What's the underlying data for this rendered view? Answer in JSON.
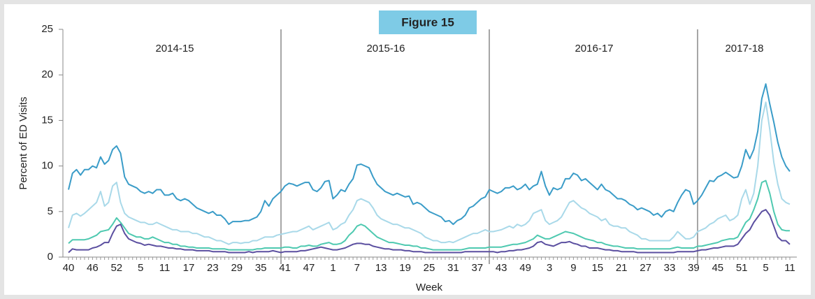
{
  "chart_data": {
    "type": "line",
    "badge": "Figure 15",
    "y_label": "Percent of ED Visits",
    "x_label": "Week",
    "seasons": [
      "2014-15",
      "2015-16",
      "2016-17",
      "2017-18"
    ],
    "ylim": [
      0,
      25
    ],
    "yticks": [
      0,
      5,
      10,
      15,
      20,
      25
    ],
    "categories": [
      "40",
      null,
      null,
      null,
      null,
      null,
      "46",
      null,
      null,
      null,
      null,
      null,
      "52",
      null,
      null,
      null,
      null,
      null,
      "5",
      null,
      null,
      null,
      null,
      null,
      "11",
      null,
      null,
      null,
      null,
      null,
      "17",
      null,
      null,
      null,
      null,
      null,
      "23",
      null,
      null,
      null,
      null,
      null,
      "29",
      null,
      null,
      null,
      null,
      null,
      "35",
      null,
      null,
      null,
      null,
      null,
      "41",
      null,
      null,
      null,
      null,
      null,
      "47",
      null,
      null,
      null,
      null,
      null,
      "1",
      null,
      null,
      null,
      null,
      null,
      "7",
      null,
      null,
      null,
      null,
      null,
      "13",
      null,
      null,
      null,
      null,
      null,
      "19",
      null,
      null,
      null,
      null,
      null,
      "25",
      null,
      null,
      null,
      null,
      null,
      "31",
      null,
      null,
      null,
      null,
      null,
      "37",
      null,
      null,
      null,
      null,
      null,
      "43",
      null,
      null,
      null,
      null,
      null,
      "49",
      null,
      null,
      null,
      null,
      null,
      "3",
      null,
      null,
      null,
      null,
      null,
      "9",
      null,
      null,
      null,
      null,
      null,
      "15",
      null,
      null,
      null,
      null,
      null,
      "21",
      null,
      null,
      null,
      null,
      null,
      "27",
      null,
      null,
      null,
      null,
      null,
      "33",
      null,
      null,
      null,
      null,
      null,
      "39",
      null,
      null,
      null,
      null,
      null,
      "45",
      null,
      null,
      null,
      null,
      null,
      "51",
      null,
      null,
      null,
      null,
      null,
      "5",
      null,
      null,
      null,
      null,
      null,
      "11"
    ],
    "series": [
      {
        "color": "#3a9cc8",
        "values": [
          7.4,
          9.2,
          9.6,
          9.0,
          9.6,
          9.6,
          10.0,
          9.8,
          11.0,
          10.2,
          10.6,
          11.8,
          12.2,
          11.4,
          8.8,
          8.0,
          7.8,
          7.6,
          7.2,
          7.0,
          7.2,
          7.0,
          7.4,
          7.4,
          6.8,
          6.8,
          7.0,
          6.4,
          6.2,
          6.4,
          6.2,
          5.8,
          5.4,
          5.2,
          5.0,
          4.8,
          5.0,
          4.6,
          4.6,
          4.2,
          3.6,
          3.9,
          3.9,
          3.9,
          4.0,
          4.0,
          4.2,
          4.4,
          5.0,
          6.2,
          5.6,
          6.4,
          6.8,
          7.2,
          7.8,
          8.1,
          8.0,
          7.8,
          8.0,
          8.2,
          8.2,
          7.4,
          7.2,
          7.6,
          8.3,
          8.4,
          6.4,
          6.8,
          7.4,
          7.2,
          8.0,
          8.6,
          10.1,
          10.2,
          10.0,
          9.8,
          8.8,
          8.0,
          7.6,
          7.2,
          7.0,
          6.8,
          7.0,
          6.8,
          6.6,
          6.7,
          5.8,
          6.0,
          5.8,
          5.4,
          5.0,
          4.8,
          4.6,
          4.4,
          3.9,
          4.0,
          3.6,
          4.0,
          4.2,
          4.6,
          5.4,
          5.6,
          6.0,
          6.4,
          6.6,
          7.4,
          7.2,
          7.0,
          7.2,
          7.6,
          7.6,
          7.8,
          7.4,
          7.6,
          8.0,
          7.4,
          7.8,
          8.0,
          9.4,
          7.8,
          6.8,
          7.6,
          7.4,
          7.6,
          8.6,
          8.6,
          9.2,
          9.0,
          8.4,
          8.6,
          8.2,
          7.8,
          7.4,
          8.0,
          7.4,
          7.2,
          6.8,
          6.4,
          6.4,
          6.2,
          5.8,
          5.6,
          5.2,
          5.4,
          5.2,
          5.0,
          4.6,
          4.8,
          4.4,
          5.0,
          5.2,
          5.0,
          6.0,
          6.8,
          7.4,
          7.2,
          5.8,
          6.2,
          6.8,
          7.6,
          8.4,
          8.3,
          8.8,
          9.0,
          9.3,
          9.0,
          8.7,
          8.8,
          10.0,
          11.8,
          10.8,
          11.8,
          13.8,
          17.4,
          19.0,
          16.8,
          14.8,
          12.6,
          11.0,
          10.0,
          9.4
        ]
      },
      {
        "color": "#a9d9e9",
        "values": [
          3.2,
          4.6,
          4.8,
          4.5,
          4.8,
          5.2,
          5.6,
          6.0,
          7.2,
          5.6,
          6.0,
          7.8,
          8.2,
          6.0,
          4.8,
          4.4,
          4.2,
          4.0,
          3.8,
          3.8,
          3.6,
          3.6,
          3.8,
          3.6,
          3.4,
          3.2,
          3.0,
          3.0,
          2.8,
          2.8,
          2.8,
          2.6,
          2.6,
          2.4,
          2.2,
          2.2,
          2.0,
          1.8,
          1.8,
          1.6,
          1.4,
          1.6,
          1.6,
          1.5,
          1.6,
          1.6,
          1.8,
          1.8,
          2.0,
          2.2,
          2.2,
          2.2,
          2.4,
          2.5,
          2.6,
          2.7,
          2.8,
          2.8,
          3.0,
          3.2,
          3.4,
          3.0,
          3.2,
          3.4,
          3.6,
          3.8,
          3.0,
          3.2,
          3.6,
          3.8,
          4.6,
          5.2,
          6.2,
          6.4,
          6.2,
          6.0,
          5.4,
          4.6,
          4.2,
          4.0,
          3.8,
          3.6,
          3.6,
          3.4,
          3.2,
          3.2,
          3.0,
          2.8,
          2.6,
          2.2,
          2.0,
          1.8,
          1.8,
          1.6,
          1.6,
          1.7,
          1.6,
          1.8,
          2.0,
          2.2,
          2.4,
          2.6,
          2.6,
          2.8,
          3.0,
          2.8,
          2.8,
          2.9,
          3.0,
          3.2,
          3.4,
          3.2,
          3.6,
          3.4,
          3.6,
          4.0,
          4.8,
          5.0,
          5.2,
          4.0,
          3.6,
          3.8,
          4.0,
          4.4,
          5.2,
          6.0,
          6.2,
          5.8,
          5.4,
          5.2,
          4.8,
          4.6,
          4.4,
          4.0,
          4.2,
          3.6,
          3.4,
          3.4,
          3.2,
          3.2,
          2.8,
          2.6,
          2.4,
          2.0,
          2.0,
          1.8,
          1.8,
          1.8,
          1.8,
          1.8,
          1.8,
          2.2,
          2.8,
          2.4,
          2.0,
          2.0,
          2.2,
          2.8,
          3.0,
          3.2,
          3.6,
          3.8,
          4.2,
          4.4,
          4.6,
          4.0,
          4.2,
          4.6,
          6.4,
          7.4,
          5.8,
          7.0,
          10.0,
          15.0,
          17.0,
          14.0,
          10.4,
          8.0,
          6.4,
          6.0,
          5.8
        ]
      },
      {
        "color": "#4ec9b0",
        "values": [
          1.5,
          1.9,
          1.9,
          1.9,
          1.9,
          2.0,
          2.2,
          2.4,
          2.8,
          2.9,
          3.0,
          3.6,
          4.3,
          3.8,
          3.2,
          2.6,
          2.4,
          2.2,
          2.2,
          2.0,
          2.0,
          2.2,
          2.0,
          1.8,
          1.6,
          1.6,
          1.4,
          1.4,
          1.2,
          1.2,
          1.1,
          1.1,
          1.0,
          1.0,
          1.0,
          1.0,
          0.9,
          0.9,
          0.9,
          0.9,
          0.8,
          0.8,
          0.8,
          0.8,
          0.8,
          0.8,
          0.8,
          0.9,
          0.9,
          1.0,
          1.0,
          1.0,
          1.0,
          1.0,
          1.1,
          1.1,
          1.0,
          1.0,
          1.2,
          1.2,
          1.3,
          1.2,
          1.2,
          1.4,
          1.5,
          1.6,
          1.4,
          1.4,
          1.5,
          1.8,
          2.4,
          2.8,
          3.4,
          3.6,
          3.4,
          3.0,
          2.6,
          2.2,
          2.0,
          1.8,
          1.6,
          1.6,
          1.5,
          1.4,
          1.3,
          1.3,
          1.2,
          1.2,
          1.0,
          1.0,
          0.9,
          0.8,
          0.8,
          0.8,
          0.8,
          0.8,
          0.8,
          0.8,
          0.8,
          0.9,
          1.0,
          1.0,
          1.0,
          1.0,
          1.0,
          1.1,
          1.1,
          1.1,
          1.1,
          1.2,
          1.3,
          1.4,
          1.4,
          1.5,
          1.6,
          1.8,
          2.0,
          2.4,
          2.2,
          2.0,
          2.0,
          2.2,
          2.4,
          2.6,
          2.8,
          2.7,
          2.6,
          2.4,
          2.2,
          2.0,
          1.9,
          1.8,
          1.6,
          1.6,
          1.4,
          1.3,
          1.2,
          1.2,
          1.1,
          1.0,
          1.0,
          1.0,
          0.9,
          0.9,
          0.9,
          0.9,
          0.9,
          0.9,
          0.9,
          0.9,
          0.9,
          1.0,
          1.1,
          1.0,
          1.0,
          1.0,
          1.0,
          1.2,
          1.2,
          1.3,
          1.4,
          1.5,
          1.6,
          1.8,
          1.9,
          2.0,
          2.0,
          2.2,
          3.0,
          3.8,
          4.2,
          5.2,
          6.4,
          8.2,
          8.4,
          7.0,
          5.0,
          3.6,
          3.0,
          2.9,
          2.9
        ]
      },
      {
        "color": "#5b4fa0",
        "values": [
          0.5,
          0.9,
          0.8,
          0.8,
          0.8,
          0.8,
          1.0,
          1.1,
          1.3,
          1.6,
          1.6,
          2.6,
          3.4,
          3.6,
          2.6,
          2.0,
          1.8,
          1.6,
          1.5,
          1.3,
          1.4,
          1.3,
          1.2,
          1.2,
          1.1,
          1.0,
          1.0,
          0.9,
          0.9,
          0.8,
          0.8,
          0.8,
          0.7,
          0.7,
          0.7,
          0.7,
          0.6,
          0.6,
          0.6,
          0.6,
          0.5,
          0.5,
          0.5,
          0.5,
          0.5,
          0.6,
          0.5,
          0.6,
          0.6,
          0.6,
          0.6,
          0.7,
          0.6,
          0.5,
          0.6,
          0.6,
          0.6,
          0.6,
          0.7,
          0.7,
          0.8,
          0.9,
          1.0,
          1.1,
          1.0,
          0.9,
          0.8,
          0.8,
          0.9,
          1.0,
          1.2,
          1.4,
          1.5,
          1.5,
          1.4,
          1.4,
          1.2,
          1.1,
          1.0,
          0.9,
          0.9,
          0.8,
          0.8,
          0.8,
          0.7,
          0.7,
          0.6,
          0.6,
          0.6,
          0.5,
          0.5,
          0.5,
          0.5,
          0.5,
          0.5,
          0.5,
          0.5,
          0.5,
          0.5,
          0.6,
          0.6,
          0.6,
          0.6,
          0.6,
          0.6,
          0.6,
          0.6,
          0.5,
          0.6,
          0.6,
          0.7,
          0.7,
          0.8,
          0.8,
          0.9,
          1.0,
          1.2,
          1.6,
          1.7,
          1.4,
          1.3,
          1.2,
          1.4,
          1.6,
          1.6,
          1.7,
          1.5,
          1.4,
          1.2,
          1.2,
          1.0,
          1.0,
          1.0,
          0.9,
          0.8,
          0.8,
          0.7,
          0.7,
          0.6,
          0.6,
          0.6,
          0.6,
          0.5,
          0.5,
          0.5,
          0.5,
          0.5,
          0.5,
          0.5,
          0.5,
          0.5,
          0.5,
          0.6,
          0.6,
          0.6,
          0.6,
          0.6,
          0.7,
          0.8,
          0.8,
          0.9,
          1.0,
          1.0,
          1.1,
          1.2,
          1.2,
          1.2,
          1.4,
          2.0,
          2.6,
          3.0,
          3.8,
          4.4,
          5.0,
          5.2,
          4.6,
          3.4,
          2.2,
          1.8,
          1.8,
          1.4
        ]
      }
    ]
  }
}
